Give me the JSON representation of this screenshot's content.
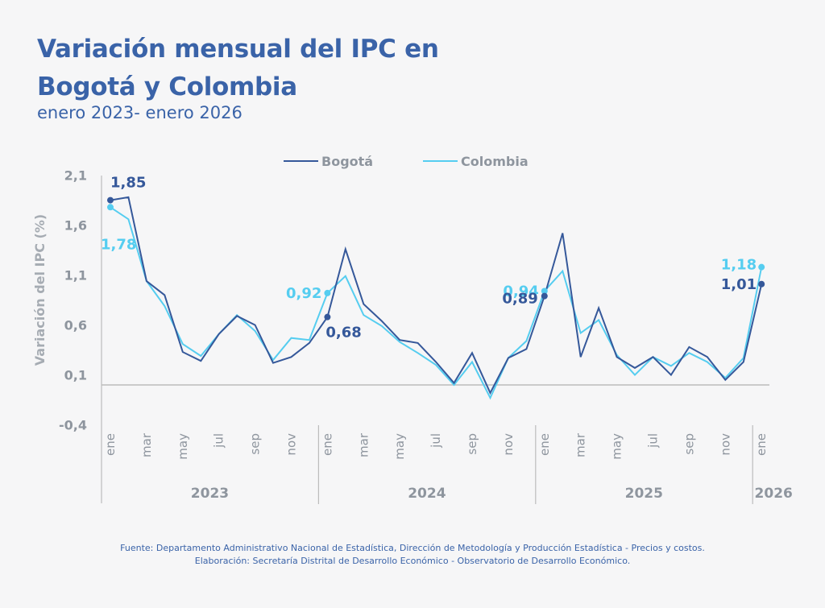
{
  "header": {
    "title_line1": "Variación mensual del IPC en",
    "title_line2": "Bogotá y Colombia",
    "subtitle": "enero 2023- enero 2026"
  },
  "footer": {
    "source": "Fuente: Departamento Administrativo Nacional de Estadística, Dirección de Metodología y Producción Estadística - Precios y costos.",
    "elaboration": "Elaboración: Secretaría Distrital de Desarrollo Económico - Observatorio de Desarrollo Económico."
  },
  "chart_data": {
    "type": "line",
    "title": "Variación mensual del IPC en Bogotá y Colombia",
    "subtitle": "enero 2023- enero 2026",
    "ylabel": "Variación del IPC (%)",
    "xlabel": "",
    "ylim": [
      -0.4,
      2.1
    ],
    "yticks": [
      "2,1",
      "1,6",
      "1,1",
      "0,6",
      "0,1",
      "-0,4"
    ],
    "ytick_values": [
      2.1,
      1.6,
      1.1,
      0.6,
      0.1,
      -0.4
    ],
    "grid": false,
    "legend_position": "top-center",
    "month_tick_labels": [
      "ene",
      "mar",
      "may",
      "jul",
      "sep",
      "nov"
    ],
    "years": [
      {
        "label": "2023",
        "start": 0,
        "months": 12
      },
      {
        "label": "2024",
        "start": 12,
        "months": 12
      },
      {
        "label": "2025",
        "start": 24,
        "months": 12
      },
      {
        "label": "2026",
        "start": 36,
        "months": 1
      }
    ],
    "x": [
      "ene 2023",
      "feb 2023",
      "mar 2023",
      "abr 2023",
      "may 2023",
      "jun 2023",
      "jul 2023",
      "ago 2023",
      "sep 2023",
      "oct 2023",
      "nov 2023",
      "dic 2023",
      "ene 2024",
      "feb 2024",
      "mar 2024",
      "abr 2024",
      "may 2024",
      "jun 2024",
      "jul 2024",
      "ago 2024",
      "sep 2024",
      "oct 2024",
      "nov 2024",
      "dic 2024",
      "ene 2025",
      "feb 2025",
      "mar 2025",
      "abr 2025",
      "may 2025",
      "jun 2025",
      "jul 2025",
      "ago 2025",
      "sep 2025",
      "oct 2025",
      "nov 2025",
      "dic 2025",
      "ene 2026"
    ],
    "series": [
      {
        "name": "Bogotá",
        "color": "#35589a",
        "values": [
          1.85,
          1.88,
          1.04,
          0.9,
          0.33,
          0.24,
          0.51,
          0.69,
          0.6,
          0.22,
          0.28,
          0.42,
          0.68,
          1.36,
          0.81,
          0.64,
          0.45,
          0.42,
          0.23,
          0.02,
          0.32,
          -0.08,
          0.27,
          0.36,
          0.89,
          1.52,
          0.28,
          0.77,
          0.28,
          0.17,
          0.28,
          0.1,
          0.38,
          0.28,
          0.05,
          0.23,
          1.01
        ]
      },
      {
        "name": "Colombia",
        "color": "#55cdf0",
        "values": [
          1.78,
          1.66,
          1.04,
          0.79,
          0.41,
          0.29,
          0.51,
          0.7,
          0.54,
          0.25,
          0.47,
          0.45,
          0.92,
          1.09,
          0.7,
          0.59,
          0.43,
          0.32,
          0.2,
          0.0,
          0.23,
          -0.13,
          0.27,
          0.44,
          0.94,
          1.14,
          0.52,
          0.65,
          0.3,
          0.1,
          0.28,
          0.19,
          0.32,
          0.23,
          0.07,
          0.27,
          1.18
        ]
      }
    ],
    "annotations": [
      {
        "series": "Bogotá",
        "index": 0,
        "text": "1,85",
        "position": "above-right"
      },
      {
        "series": "Colombia",
        "index": 0,
        "text": "1,78",
        "position": "below"
      },
      {
        "series": "Colombia",
        "index": 12,
        "text": "0,92",
        "position": "left"
      },
      {
        "series": "Bogotá",
        "index": 12,
        "text": "0,68",
        "position": "below-right"
      },
      {
        "series": "Colombia",
        "index": 24,
        "text": "0,94",
        "position": "left"
      },
      {
        "series": "Bogotá",
        "index": 24,
        "text": "0,89",
        "position": "left-below"
      },
      {
        "series": "Colombia",
        "index": 36,
        "text": "1,18",
        "position": "left"
      },
      {
        "series": "Bogotá",
        "index": 36,
        "text": "1,01",
        "position": "left"
      }
    ],
    "axis_text_color": "#8e959e",
    "axis_line_color": "#bcbcbc"
  }
}
